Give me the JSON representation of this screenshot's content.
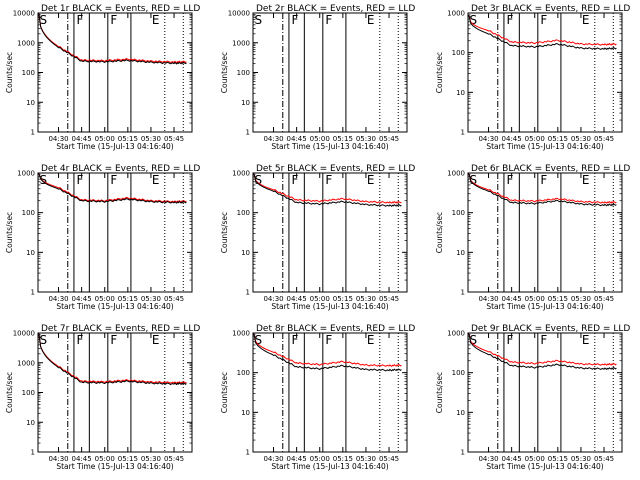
{
  "figure": {
    "xlabel": "Start Time (15-Jul-13 04:16:40)",
    "ylabel": "Counts/sec",
    "legend_text": "BLACK = Events, RED = LLD",
    "x_tick_labels": [
      "04:30",
      "04:45",
      "05:00",
      "05:15",
      "05:30",
      "05:45"
    ],
    "y_tick_labels": [
      "1",
      "10",
      "100",
      "1000"
    ],
    "y_tick_label_top_large": "10000",
    "flag_letters": [
      "S",
      "F",
      "F",
      "E"
    ],
    "colors": {
      "events": "#000000",
      "lld": "#ff0000",
      "background": "#ffffff"
    }
  },
  "chart_data": [
    {
      "type": "line",
      "title": "Det 1r",
      "x": [
        "04:18",
        "04:30",
        "04:45",
        "05:00",
        "05:15",
        "05:30",
        "05:45",
        "05:53"
      ],
      "ylim": [
        1,
        10000
      ],
      "yscale": "log",
      "series": [
        {
          "name": "Events",
          "values": [
            12000,
            700,
            240,
            230,
            255,
            220,
            205,
            210
          ]
        },
        {
          "name": "LLD",
          "values": [
            12000,
            750,
            260,
            250,
            280,
            240,
            225,
            230
          ]
        }
      ]
    },
    {
      "type": "line",
      "title": "Det 2r",
      "x": [],
      "ylim": [
        1,
        10000
      ],
      "yscale": "log",
      "series": []
    },
    {
      "type": "line",
      "title": "Det 3r",
      "x": [
        "04:18",
        "04:30",
        "04:45",
        "05:00",
        "05:15",
        "05:30",
        "05:45",
        "05:53"
      ],
      "ylim": [
        1,
        1000
      ],
      "yscale": "log",
      "series": [
        {
          "name": "Events",
          "values": [
            900,
            300,
            150,
            140,
            165,
            130,
            125,
            130
          ]
        },
        {
          "name": "LLD",
          "values": [
            900,
            360,
            185,
            175,
            205,
            165,
            160,
            165
          ]
        }
      ]
    },
    {
      "type": "line",
      "title": "Det 4r",
      "x": [
        "04:18",
        "04:30",
        "04:45",
        "05:00",
        "05:15",
        "05:30",
        "05:45",
        "05:53"
      ],
      "ylim": [
        1,
        1000
      ],
      "yscale": "log",
      "series": [
        {
          "name": "Events",
          "values": [
            1100,
            400,
            200,
            190,
            220,
            190,
            180,
            185
          ]
        },
        {
          "name": "LLD",
          "values": [
            1100,
            430,
            210,
            200,
            235,
            200,
            190,
            195
          ]
        }
      ]
    },
    {
      "type": "line",
      "title": "Det 5r",
      "x": [
        "04:18",
        "04:30",
        "04:45",
        "05:00",
        "05:15",
        "05:30",
        "05:45",
        "05:53"
      ],
      "ylim": [
        1,
        1000
      ],
      "yscale": "log",
      "series": [
        {
          "name": "Events",
          "values": [
            1000,
            350,
            180,
            165,
            190,
            160,
            150,
            155
          ]
        },
        {
          "name": "LLD",
          "values": [
            1000,
            380,
            210,
            195,
            225,
            190,
            180,
            185
          ]
        }
      ]
    },
    {
      "type": "line",
      "title": "Det 6r",
      "x": [
        "04:18",
        "04:30",
        "04:45",
        "05:00",
        "05:15",
        "05:30",
        "05:45",
        "05:53"
      ],
      "ylim": [
        1,
        1000
      ],
      "yscale": "log",
      "series": [
        {
          "name": "Events",
          "values": [
            1000,
            350,
            180,
            170,
            200,
            165,
            155,
            160
          ]
        },
        {
          "name": "LLD",
          "values": [
            1000,
            380,
            205,
            195,
            225,
            190,
            180,
            185
          ]
        }
      ]
    },
    {
      "type": "line",
      "title": "Det 7r",
      "x": [
        "04:18",
        "04:30",
        "04:45",
        "05:00",
        "05:15",
        "05:30",
        "05:45",
        "05:53"
      ],
      "ylim": [
        1,
        10000
      ],
      "yscale": "log",
      "series": [
        {
          "name": "Events",
          "values": [
            12000,
            700,
            220,
            210,
            240,
            205,
            195,
            200
          ]
        },
        {
          "name": "LLD",
          "values": [
            12000,
            750,
            240,
            230,
            260,
            225,
            215,
            220
          ]
        }
      ]
    },
    {
      "type": "line",
      "title": "Det 8r",
      "x": [
        "04:18",
        "04:30",
        "04:45",
        "05:00",
        "05:15",
        "05:30",
        "05:45",
        "05:53"
      ],
      "ylim": [
        1,
        1000
      ],
      "yscale": "log",
      "series": [
        {
          "name": "Events",
          "values": [
            1000,
            280,
            140,
            125,
            150,
            120,
            115,
            120
          ]
        },
        {
          "name": "LLD",
          "values": [
            1000,
            330,
            175,
            160,
            190,
            155,
            150,
            155
          ]
        }
      ]
    },
    {
      "type": "line",
      "title": "Det 9r",
      "x": [
        "04:18",
        "04:30",
        "04:45",
        "05:00",
        "05:15",
        "05:30",
        "05:45",
        "05:53"
      ],
      "ylim": [
        1,
        1000
      ],
      "yscale": "log",
      "series": [
        {
          "name": "Events",
          "values": [
            1000,
            290,
            150,
            135,
            160,
            130,
            125,
            130
          ]
        },
        {
          "name": "LLD",
          "values": [
            1000,
            340,
            185,
            170,
            200,
            165,
            160,
            165
          ]
        }
      ]
    }
  ]
}
